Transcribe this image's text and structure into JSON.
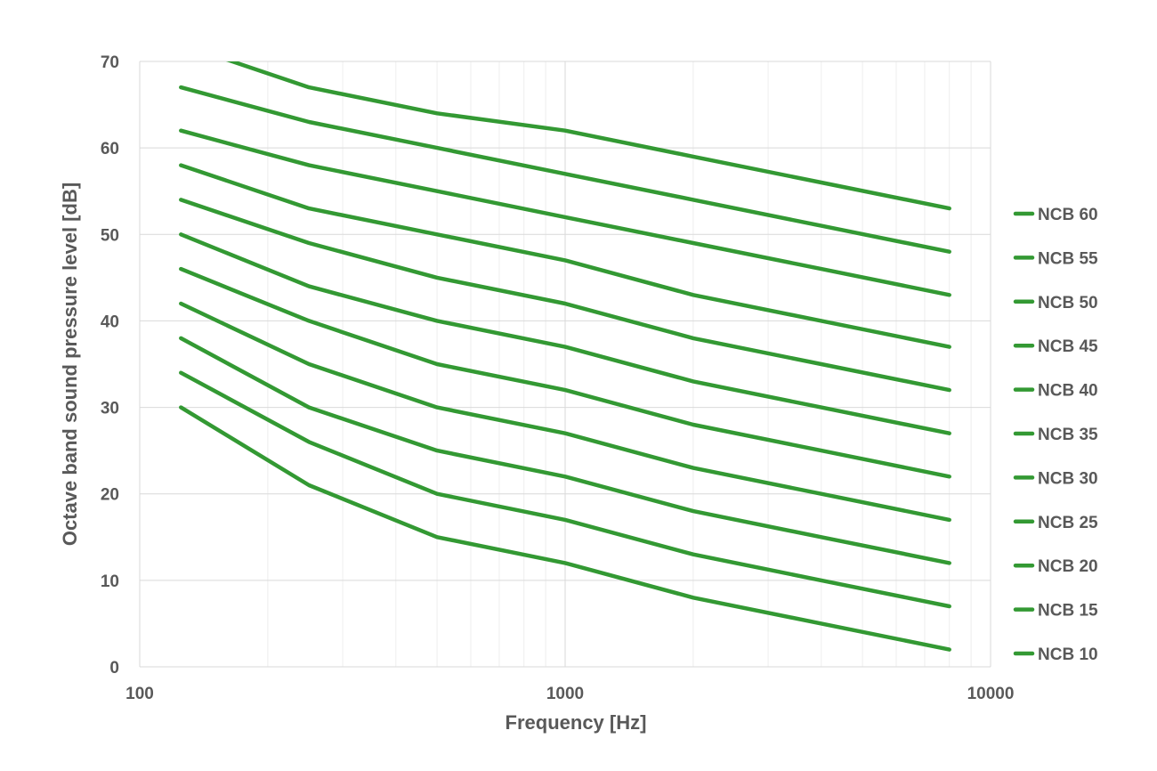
{
  "chart_data": {
    "type": "line",
    "title": "",
    "xlabel": "Frequency [Hz]",
    "ylabel": "Octave band sound pressure level [dB]",
    "x_scale": "log",
    "xlim": [
      100,
      10000
    ],
    "ylim": [
      0,
      70
    ],
    "x_ticks": [
      "100",
      "1000",
      "10000"
    ],
    "y_ticks": [
      "0",
      "10",
      "20",
      "30",
      "40",
      "50",
      "60",
      "70"
    ],
    "grid": true,
    "legend_position": "right",
    "line_color": "#339933",
    "x": [
      125,
      250,
      500,
      1000,
      2000,
      4000,
      8000
    ],
    "series": [
      {
        "name": "NCB 60",
        "values": [
          72,
          67,
          64,
          62,
          59,
          56,
          53
        ]
      },
      {
        "name": "NCB 55",
        "values": [
          67,
          63,
          60,
          57,
          54,
          51,
          48
        ]
      },
      {
        "name": "NCB 50",
        "values": [
          62,
          58,
          55,
          52,
          49,
          46,
          43
        ]
      },
      {
        "name": "NCB 45",
        "values": [
          58,
          53,
          50,
          47,
          43,
          40,
          37
        ]
      },
      {
        "name": "NCB 40",
        "values": [
          54,
          49,
          45,
          42,
          38,
          35,
          32
        ]
      },
      {
        "name": "NCB 35",
        "values": [
          50,
          44,
          40,
          37,
          33,
          30,
          27
        ]
      },
      {
        "name": "NCB 30",
        "values": [
          46,
          40,
          35,
          32,
          28,
          25,
          22
        ]
      },
      {
        "name": "NCB 25",
        "values": [
          42,
          35,
          30,
          27,
          23,
          20,
          17
        ]
      },
      {
        "name": "NCB 20",
        "values": [
          38,
          30,
          25,
          22,
          18,
          15,
          12
        ]
      },
      {
        "name": "NCB 15",
        "values": [
          34,
          26,
          20,
          17,
          13,
          10,
          7
        ]
      },
      {
        "name": "NCB 10",
        "values": [
          30,
          21,
          15,
          12,
          8,
          5,
          2
        ]
      }
    ]
  }
}
